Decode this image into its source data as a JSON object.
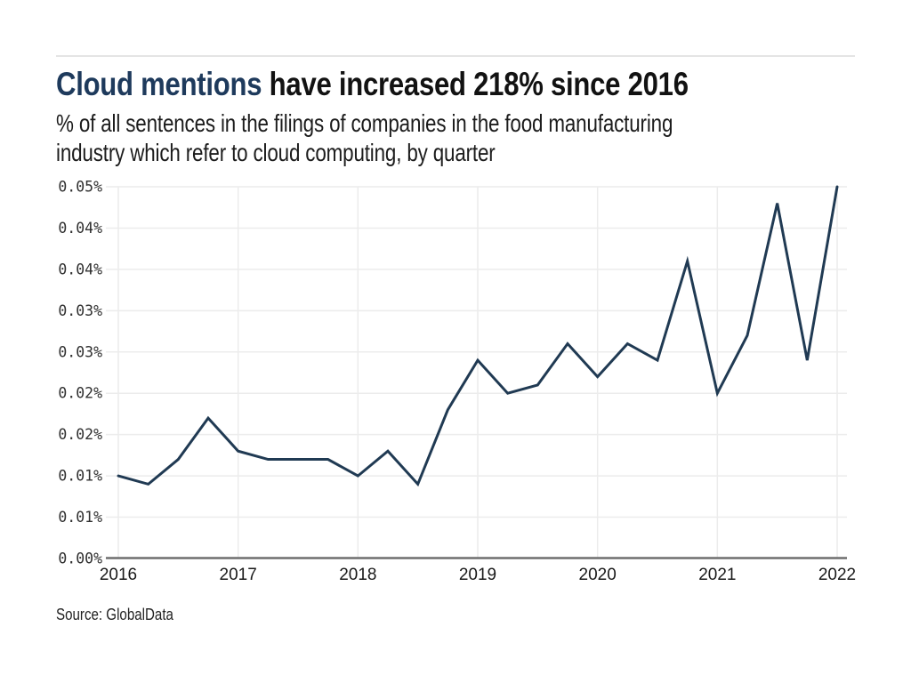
{
  "header": {
    "title_highlight": "Cloud mentions",
    "title_rest": " have increased 218% since 2016",
    "title_highlight_color": "#1e3a5c",
    "title_text_color": "#121212",
    "subtitle_lines": [
      "% of all sentences in the filings of companies in the food manufacturing",
      "industry which refer to cloud computing, by quarter"
    ]
  },
  "chart_data": {
    "type": "line",
    "title": "Cloud mentions have increased 218% since 2016",
    "subtitle": "% of all sentences in the filings of companies in the food manufacturing industry which refer to cloud computing, by quarter",
    "unit": "% of all sentences",
    "grid": true,
    "legend": false,
    "line_color": "#203a53",
    "axis_color": "#6e6e6e",
    "grid_color": "#ececec",
    "ylim": [
      0,
      0.045
    ],
    "y_ticks": [
      {
        "label": "0.05%",
        "value": 0.045
      },
      {
        "label": "0.04%",
        "value": 0.04
      },
      {
        "label": "0.04%",
        "value": 0.035
      },
      {
        "label": "0.03%",
        "value": 0.03
      },
      {
        "label": "0.03%",
        "value": 0.025
      },
      {
        "label": "0.02%",
        "value": 0.02
      },
      {
        "label": "0.02%",
        "value": 0.015
      },
      {
        "label": "0.01%",
        "value": 0.01
      },
      {
        "label": "0.01%",
        "value": 0.005
      },
      {
        "label": "0.00%",
        "value": 0.0
      }
    ],
    "x_tick_labels": [
      "2016",
      "2017",
      "2018",
      "2019",
      "2020",
      "2021",
      "2022"
    ],
    "x": [
      "2016 Q1",
      "2016 Q2",
      "2016 Q3",
      "2016 Q4",
      "2017 Q1",
      "2017 Q2",
      "2017 Q3",
      "2017 Q4",
      "2018 Q1",
      "2018 Q2",
      "2018 Q3",
      "2018 Q4",
      "2019 Q1",
      "2019 Q2",
      "2019 Q3",
      "2019 Q4",
      "2020 Q1",
      "2020 Q2",
      "2020 Q3",
      "2020 Q4",
      "2021 Q1",
      "2021 Q2",
      "2021 Q3",
      "2021 Q4",
      "2022 Q1"
    ],
    "values": [
      0.01,
      0.009,
      0.012,
      0.017,
      0.013,
      0.012,
      0.012,
      0.012,
      0.01,
      0.013,
      0.009,
      0.018,
      0.024,
      0.02,
      0.021,
      0.026,
      0.022,
      0.026,
      0.024,
      0.036,
      0.02,
      0.027,
      0.043,
      0.024,
      0.045
    ]
  },
  "footer": {
    "source": "Source: GlobalData"
  }
}
